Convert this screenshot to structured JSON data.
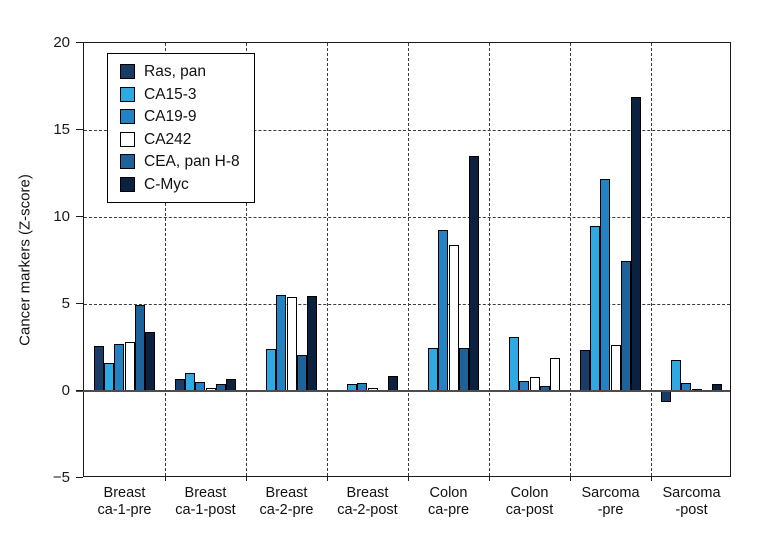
{
  "chart_data": {
    "type": "bar",
    "title": "",
    "xlabel": "",
    "ylabel": "Cancer markers (Z-score)",
    "ylim": [
      -5,
      20
    ],
    "yticks": [
      20,
      15,
      10,
      5,
      0,
      -5
    ],
    "grid_lines_y": [
      5,
      10,
      15
    ],
    "grid_style": "dashed",
    "legend": {
      "position": "top-left-inside"
    },
    "categories": [
      [
        "Breast",
        "ca-1-pre"
      ],
      [
        "Breast",
        "ca-1-post"
      ],
      [
        "Breast",
        "ca-2-pre"
      ],
      [
        "Breast",
        "ca-2-post"
      ],
      [
        "Colon",
        "ca-pre"
      ],
      [
        "Colon",
        "ca-post"
      ],
      [
        "Sarcoma",
        "-pre"
      ],
      [
        "Sarcoma",
        "-post"
      ]
    ],
    "series": [
      {
        "name": "Ras, pan",
        "color": "#1a3c66",
        "values": [
          2.6,
          0.7,
          0,
          0,
          0,
          0,
          2.35,
          -0.65
        ]
      },
      {
        "name": "CA15-3",
        "color": "#2fa9e1",
        "values": [
          1.6,
          1.05,
          2.4,
          0.4,
          2.45,
          3.1,
          9.5,
          1.8
        ]
      },
      {
        "name": "CA19-9",
        "color": "#2383c2",
        "values": [
          2.7,
          0.5,
          5.5,
          0.45,
          9.25,
          0.6,
          12.2,
          0.45
        ]
      },
      {
        "name": "CA242",
        "color": "#ffffff",
        "values": [
          2.8,
          0.15,
          5.4,
          0.2,
          8.4,
          0.8,
          2.65,
          0.1
        ]
      },
      {
        "name": "CEA, pan H-8",
        "color": "#1d6298",
        "values": [
          4.95,
          0.4,
          2.05,
          0.05,
          2.45,
          0.3,
          7.5,
          0.05
        ]
      },
      {
        "name": "C-Myc",
        "color": "#0c203f",
        "values": [
          3.4,
          0.7,
          5.45,
          0.85,
          13.5,
          1.9,
          16.9,
          0.4
        ]
      }
    ],
    "bar_fill_overrides": [
      {
        "group_index": 5,
        "series_index": 5,
        "color": "#ffffff"
      }
    ],
    "colors": {
      "frame": "#1a1a1a",
      "grid": "#3c3c3c",
      "zero_baseline": "#4d4d4d",
      "text": "#111111",
      "background": "#ffffff"
    }
  }
}
